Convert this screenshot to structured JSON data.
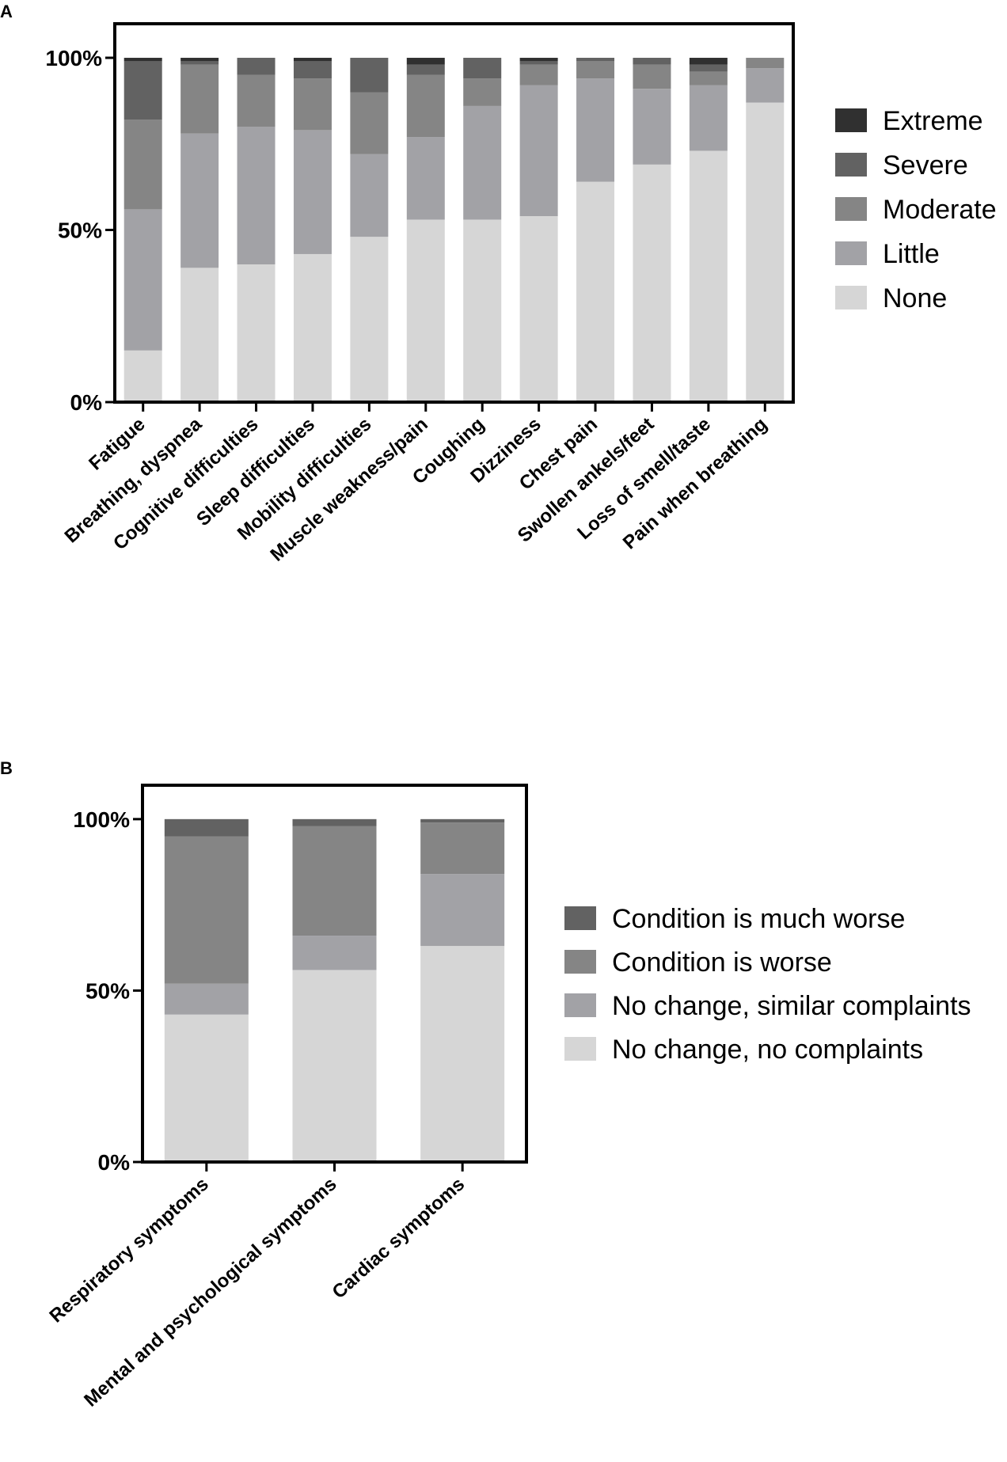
{
  "chart_data": [
    {
      "panel": "A",
      "type": "bar",
      "stacked": true,
      "ylim": [
        0,
        100
      ],
      "yticks": [
        "0%",
        "50%",
        "100%"
      ],
      "xlabel": "",
      "ylabel": "",
      "legend_position": "right",
      "categories": [
        "Fatigue",
        "Breathing, dyspnea",
        "Cognitive difficulties",
        "Sleep difficulties",
        "Mobility difficulties",
        "Muscle weakness/pain",
        "Coughing",
        "Dizziness",
        "Chest pain",
        "Swollen ankels/feet",
        "Loss of smell/taste",
        "Pain when breathing"
      ],
      "series": [
        {
          "name": "None",
          "color": "#d6d6d6",
          "values": [
            15,
            39,
            40,
            43,
            48,
            53,
            53,
            54,
            64,
            69,
            73,
            87
          ]
        },
        {
          "name": "Little",
          "color": "#a2a2a6",
          "values": [
            41,
            39,
            40,
            36,
            24,
            24,
            33,
            38,
            30,
            22,
            19,
            10
          ]
        },
        {
          "name": "Moderate",
          "color": "#858585",
          "values": [
            26,
            20,
            15,
            15,
            18,
            18,
            8,
            6,
            5,
            7,
            4,
            3
          ]
        },
        {
          "name": "Severe",
          "color": "#626262",
          "values": [
            17,
            1,
            5,
            5,
            10,
            3,
            6,
            1,
            1,
            2,
            2,
            0
          ]
        },
        {
          "name": "Extreme",
          "color": "#303030",
          "values": [
            1,
            1,
            0,
            1,
            0,
            2,
            0,
            1,
            0,
            0,
            2,
            0
          ]
        }
      ],
      "legend": [
        "Extreme",
        "Severe",
        "Moderate",
        "Little",
        "None"
      ]
    },
    {
      "panel": "B",
      "type": "bar",
      "stacked": true,
      "ylim": [
        0,
        100
      ],
      "yticks": [
        "0%",
        "50%",
        "100%"
      ],
      "xlabel": "",
      "ylabel": "",
      "legend_position": "right",
      "categories": [
        "Respiratory symptoms",
        "Mental and psychological symptoms",
        "Cardiac symptoms"
      ],
      "series": [
        {
          "name": "No change, no complaints",
          "color": "#d6d6d6",
          "values": [
            43,
            56,
            63
          ]
        },
        {
          "name": "No change, similar complaints",
          "color": "#a2a2a6",
          "values": [
            9,
            10,
            21
          ]
        },
        {
          "name": "Condition is worse",
          "color": "#858585",
          "values": [
            43,
            32,
            15
          ]
        },
        {
          "name": "Condition is much worse",
          "color": "#626262",
          "values": [
            5,
            2,
            1
          ]
        }
      ],
      "legend": [
        "Condition is much worse",
        "Condition is worse",
        "No change, similar complaints",
        "No change, no complaints"
      ]
    }
  ]
}
